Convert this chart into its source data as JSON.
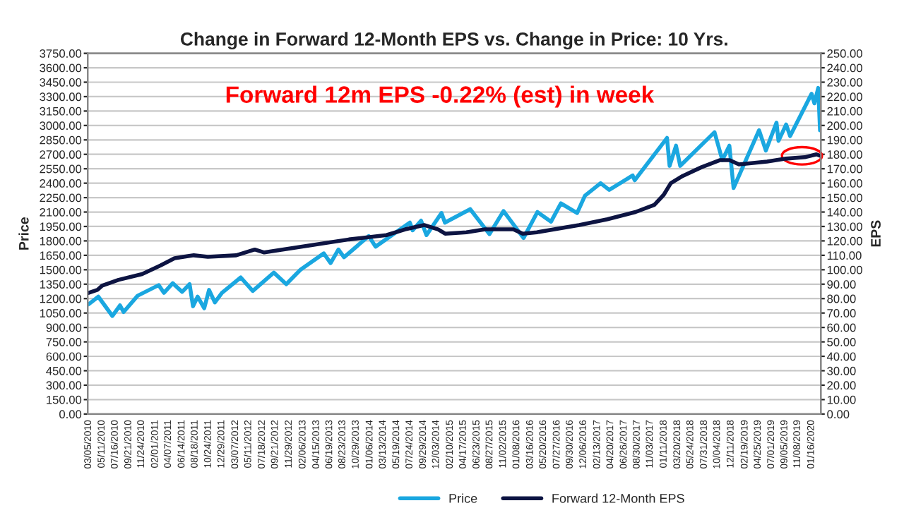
{
  "chart_data": {
    "type": "line",
    "title": "Change in Forward 12-Month EPS vs. Change in Price: 10 Yrs.",
    "ylabel": "Price",
    "y2label": "EPS",
    "annotations": [
      "Forward 12m EPS -0.22% (est) in week"
    ],
    "series": [
      {
        "name": "Price",
        "color": "#1aa7e0",
        "x": [
          "2010-03-05",
          "2010-04-23",
          "2010-07-02",
          "2010-08-09",
          "2010-08-27",
          "2010-11-05",
          "2011-02-18",
          "2011-03-16",
          "2011-04-29",
          "2011-06-15",
          "2011-07-22",
          "2011-08-08",
          "2011-08-31",
          "2011-10-03",
          "2011-10-27",
          "2011-11-25",
          "2011-12-30",
          "2012-04-02",
          "2012-06-01",
          "2012-09-14",
          "2012-11-15",
          "2013-01-25",
          "2013-05-21",
          "2013-06-24",
          "2013-08-02",
          "2013-08-30",
          "2013-12-31",
          "2014-02-03",
          "2014-07-24",
          "2014-08-07",
          "2014-09-18",
          "2014-10-15",
          "2014-12-29",
          "2015-01-15",
          "2015-05-21",
          "2015-08-25",
          "2015-11-03",
          "2016-02-11",
          "2016-04-20",
          "2016-06-27",
          "2016-08-15",
          "2016-11-04",
          "2016-12-13",
          "2017-03-01",
          "2017-04-13",
          "2017-08-08",
          "2017-08-18",
          "2018-01-26",
          "2018-02-08",
          "2018-03-12",
          "2018-04-02",
          "2018-09-20",
          "2018-10-29",
          "2018-12-03",
          "2018-12-24",
          "2019-04-30",
          "2019-06-03",
          "2019-07-26",
          "2019-08-05",
          "2019-09-12",
          "2019-10-02",
          "2020-01-17",
          "2020-01-31",
          "2020-02-19",
          "2020-02-28"
        ],
        "values": [
          1140,
          1220,
          1020,
          1130,
          1060,
          1230,
          1340,
          1260,
          1360,
          1270,
          1350,
          1120,
          1220,
          1100,
          1290,
          1160,
          1260,
          1420,
          1280,
          1470,
          1350,
          1500,
          1670,
          1570,
          1710,
          1630,
          1850,
          1740,
          1990,
          1910,
          2010,
          1860,
          2090,
          1990,
          2130,
          1870,
          2110,
          1830,
          2100,
          2000,
          2190,
          2090,
          2270,
          2400,
          2330,
          2480,
          2430,
          2870,
          2580,
          2790,
          2580,
          2930,
          2640,
          2790,
          2350,
          2950,
          2740,
          3030,
          2840,
          3010,
          2890,
          3330,
          3230,
          3390,
          2950
        ]
      },
      {
        "name": "Forward 12-Month EPS",
        "color": "#0d1442",
        "axis": "y2",
        "x": [
          "2010-03-05",
          "2010-04-18",
          "2010-05-12",
          "2010-08-02",
          "2010-11-27",
          "2011-02-27",
          "2011-05-08",
          "2011-08-12",
          "2011-10-21",
          "2012-03-10",
          "2012-06-11",
          "2012-07-28",
          "2013-03-20",
          "2013-09-23",
          "2014-03-29",
          "2014-07-01",
          "2014-10-03",
          "2014-12-12",
          "2015-01-16",
          "2015-05-02",
          "2015-08-03",
          "2015-12-22",
          "2016-02-07",
          "2016-04-17",
          "2016-11-14",
          "2017-04-04",
          "2017-08-22",
          "2017-11-24",
          "2018-01-10",
          "2018-02-14",
          "2018-04-14",
          "2018-07-16",
          "2018-10-18",
          "2018-12-04",
          "2019-01-20",
          "2019-06-09",
          "2019-09-11",
          "2019-12-14",
          "2020-02-10",
          "2020-02-28"
        ],
        "values": [
          84,
          86,
          89,
          93,
          97,
          103,
          108,
          110,
          109,
          110,
          114,
          112,
          117,
          121,
          124,
          128,
          131,
          128,
          125,
          126,
          128,
          128,
          125,
          126,
          131,
          135,
          140,
          145,
          152,
          160,
          165,
          171,
          176,
          176,
          173,
          175,
          177,
          178,
          180,
          179
        ]
      }
    ],
    "xlim": [
      "2010-03-01",
      "2020-03-03"
    ],
    "xticks": [
      {
        "value": "2010-03-05",
        "label": "03/05/2010"
      },
      {
        "value": "2010-05-11",
        "label": "05/11/2010"
      },
      {
        "value": "2010-07-16",
        "label": "07/16/2010"
      },
      {
        "value": "2010-09-21",
        "label": "09/21/2010"
      },
      {
        "value": "2010-11-24",
        "label": "11/24/2010"
      },
      {
        "value": "2011-02-01",
        "label": "02/01/2011"
      },
      {
        "value": "2011-04-07",
        "label": "04/07/2011"
      },
      {
        "value": "2011-06-14",
        "label": "06/14/2011"
      },
      {
        "value": "2011-08-18",
        "label": "08/18/2011"
      },
      {
        "value": "2011-10-24",
        "label": "10/24/2011"
      },
      {
        "value": "2011-12-29",
        "label": "12/29/2011"
      },
      {
        "value": "2012-03-07",
        "label": "03/07/2012"
      },
      {
        "value": "2012-05-11",
        "label": "05/11/2012"
      },
      {
        "value": "2012-07-18",
        "label": "07/18/2012"
      },
      {
        "value": "2012-09-21",
        "label": "09/21/2012"
      },
      {
        "value": "2012-11-29",
        "label": "11/29/2012"
      },
      {
        "value": "2013-02-06",
        "label": "02/06/2013"
      },
      {
        "value": "2013-04-15",
        "label": "04/15/2013"
      },
      {
        "value": "2013-06-19",
        "label": "06/19/2013"
      },
      {
        "value": "2013-08-23",
        "label": "08/23/2013"
      },
      {
        "value": "2013-10-29",
        "label": "10/29/2013"
      },
      {
        "value": "2014-01-06",
        "label": "01/06/2014"
      },
      {
        "value": "2014-03-13",
        "label": "03/13/2014"
      },
      {
        "value": "2014-05-19",
        "label": "05/19/2014"
      },
      {
        "value": "2014-07-24",
        "label": "07/24/2014"
      },
      {
        "value": "2014-09-29",
        "label": "09/29/2014"
      },
      {
        "value": "2014-12-03",
        "label": "12/03/2014"
      },
      {
        "value": "2015-02-10",
        "label": "02/10/2015"
      },
      {
        "value": "2015-04-17",
        "label": "04/17/2015"
      },
      {
        "value": "2015-06-23",
        "label": "06/23/2015"
      },
      {
        "value": "2015-08-27",
        "label": "08/27/2015"
      },
      {
        "value": "2015-11-02",
        "label": "11/02/2015"
      },
      {
        "value": "2016-01-08",
        "label": "01/08/2016"
      },
      {
        "value": "2016-03-16",
        "label": "03/16/2016"
      },
      {
        "value": "2016-05-20",
        "label": "05/20/2016"
      },
      {
        "value": "2016-07-27",
        "label": "07/27/2016"
      },
      {
        "value": "2016-09-30",
        "label": "09/30/2016"
      },
      {
        "value": "2016-12-06",
        "label": "12/06/2016"
      },
      {
        "value": "2017-02-13",
        "label": "02/13/2017"
      },
      {
        "value": "2017-04-20",
        "label": "04/20/2017"
      },
      {
        "value": "2017-06-26",
        "label": "06/26/2017"
      },
      {
        "value": "2017-08-30",
        "label": "08/30/2017"
      },
      {
        "value": "2017-11-03",
        "label": "11/03/2017"
      },
      {
        "value": "2018-01-11",
        "label": "01/11/2018"
      },
      {
        "value": "2018-03-20",
        "label": "03/20/2018"
      },
      {
        "value": "2018-05-24",
        "label": "05/24/2018"
      },
      {
        "value": "2018-07-31",
        "label": "07/31/2018"
      },
      {
        "value": "2018-10-04",
        "label": "10/04/2018"
      },
      {
        "value": "2018-12-11",
        "label": "12/11/2018"
      },
      {
        "value": "2019-02-19",
        "label": "02/19/2019"
      },
      {
        "value": "2019-04-25",
        "label": "04/25/2019"
      },
      {
        "value": "2019-07-01",
        "label": "07/01/2019"
      },
      {
        "value": "2019-09-05",
        "label": "09/05/2019"
      },
      {
        "value": "2019-11-08",
        "label": "11/08/2019"
      },
      {
        "value": "2020-01-16",
        "label": "01/16/2020"
      }
    ],
    "ylim": [
      0,
      3750
    ],
    "yticks": [
      {
        "value": 0,
        "label": "0.00"
      },
      {
        "value": 150,
        "label": "150.00"
      },
      {
        "value": 300,
        "label": "300.00"
      },
      {
        "value": 450,
        "label": "450.00"
      },
      {
        "value": 600,
        "label": "600.00"
      },
      {
        "value": 750,
        "label": "750.00"
      },
      {
        "value": 900,
        "label": "900.00"
      },
      {
        "value": 1050,
        "label": "1050.00"
      },
      {
        "value": 1200,
        "label": "1200.00"
      },
      {
        "value": 1350,
        "label": "1350.00"
      },
      {
        "value": 1500,
        "label": "1500.00"
      },
      {
        "value": 1650,
        "label": "1650.00"
      },
      {
        "value": 1800,
        "label": "1800.00"
      },
      {
        "value": 1950,
        "label": "1950.00"
      },
      {
        "value": 2100,
        "label": "2100.00"
      },
      {
        "value": 2250,
        "label": "2250.00"
      },
      {
        "value": 2400,
        "label": "2400.00"
      },
      {
        "value": 2550,
        "label": "2550.00"
      },
      {
        "value": 2700,
        "label": "2700.00"
      },
      {
        "value": 2850,
        "label": "2850.00"
      },
      {
        "value": 3000,
        "label": "3000.00"
      },
      {
        "value": 3150,
        "label": "3150.00"
      },
      {
        "value": 3300,
        "label": "3300.00"
      },
      {
        "value": 3450,
        "label": "3450.00"
      },
      {
        "value": 3600,
        "label": "3600.00"
      },
      {
        "value": 3750,
        "label": "3750.00"
      }
    ],
    "y2lim": [
      0,
      250
    ],
    "y2ticks": [
      {
        "value": 0,
        "label": "0.00"
      },
      {
        "value": 10,
        "label": "10.00"
      },
      {
        "value": 20,
        "label": "20.00"
      },
      {
        "value": 30,
        "label": "30.00"
      },
      {
        "value": 40,
        "label": "40.00"
      },
      {
        "value": 50,
        "label": "50.00"
      },
      {
        "value": 60,
        "label": "60.00"
      },
      {
        "value": 70,
        "label": "70.00"
      },
      {
        "value": 80,
        "label": "80.00"
      },
      {
        "value": 90,
        "label": "90.00"
      },
      {
        "value": 100,
        "label": "100.00"
      },
      {
        "value": 110,
        "label": "110.00"
      },
      {
        "value": 120,
        "label": "120.00"
      },
      {
        "value": 130,
        "label": "130.00"
      },
      {
        "value": 140,
        "label": "140.00"
      },
      {
        "value": 150,
        "label": "150.00"
      },
      {
        "value": 160,
        "label": "160.00"
      },
      {
        "value": 170,
        "label": "170.00"
      },
      {
        "value": 180,
        "label": "180.00"
      },
      {
        "value": 190,
        "label": "190.00"
      },
      {
        "value": 200,
        "label": "200.00"
      },
      {
        "value": 210,
        "label": "210.00"
      },
      {
        "value": 220,
        "label": "220.00"
      },
      {
        "value": 230,
        "label": "230.00"
      },
      {
        "value": 240,
        "label": "240.00"
      },
      {
        "value": 250,
        "label": "250.00"
      }
    ],
    "grid": "y",
    "legend": "bottom",
    "marker": "none",
    "line_style": "solid"
  }
}
